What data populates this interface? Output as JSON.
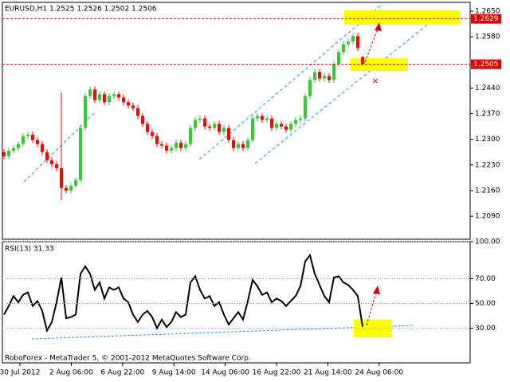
{
  "chart_data": [
    {
      "type": "candlestick",
      "title": "EURUSD,H1  1.2525 1.2526 1.2502 1.2506",
      "up_color": "#32cd32",
      "down_color": "#ff0000",
      "open": [
        1.2265,
        1.2254,
        1.2269,
        1.2276,
        1.2287,
        1.2309,
        1.2313,
        1.2298,
        1.2287,
        1.2265,
        1.2243,
        1.2232,
        1.2221,
        1.2167,
        1.216,
        1.2173,
        1.2189,
        1.2331,
        1.2418,
        1.2436,
        1.2407,
        1.2423,
        1.2401,
        1.2418,
        1.2423,
        1.2414,
        1.2401,
        1.2392,
        1.2385,
        1.2364,
        1.2342,
        1.232,
        1.2309,
        1.2287,
        1.2283,
        1.2269,
        1.2276,
        1.2291,
        1.2276,
        1.2287,
        1.2331,
        1.2353,
        1.2357,
        1.2335,
        1.2331,
        1.2342,
        1.232,
        1.2331,
        1.2298,
        1.2276,
        1.2287,
        1.2276,
        1.2298,
        1.2357,
        1.2364,
        1.2353,
        1.2357,
        1.2331,
        1.2342,
        1.2335,
        1.2326,
        1.2342,
        1.2353,
        1.2357,
        1.2418,
        1.2462,
        1.2484,
        1.2466,
        1.2473,
        1.2462,
        1.2506,
        1.2538,
        1.256,
        1.2567,
        1.2582,
        1.2525
      ],
      "high": [
        1.2273,
        1.2277,
        1.2284,
        1.2295,
        1.2317,
        1.2321,
        1.2321,
        1.2306,
        1.2295,
        1.2273,
        1.2251,
        1.224,
        1.2429,
        1.2175,
        1.2181,
        1.2197,
        1.2339,
        1.2426,
        1.2444,
        1.2444,
        1.2431,
        1.2431,
        1.2426,
        1.2431,
        1.2431,
        1.2422,
        1.2409,
        1.24,
        1.2393,
        1.2372,
        1.235,
        1.2328,
        1.2317,
        1.2295,
        1.2291,
        1.2284,
        1.2299,
        1.2299,
        1.2295,
        1.2339,
        1.2361,
        1.2365,
        1.2365,
        1.2343,
        1.235,
        1.235,
        1.2339,
        1.2339,
        1.2306,
        1.2295,
        1.2295,
        1.2306,
        1.2365,
        1.2372,
        1.2372,
        1.2365,
        1.2365,
        1.235,
        1.235,
        1.2343,
        1.235,
        1.2361,
        1.2365,
        1.2426,
        1.247,
        1.2492,
        1.2492,
        1.2481,
        1.2481,
        1.2514,
        1.2546,
        1.2568,
        1.2575,
        1.259,
        1.259,
        1.2526
      ],
      "low": [
        1.2246,
        1.2246,
        1.2261,
        1.2268,
        1.2279,
        1.2301,
        1.229,
        1.2279,
        1.2257,
        1.2235,
        1.2224,
        1.2213,
        1.2134,
        1.2152,
        1.2152,
        1.2165,
        1.2181,
        1.2323,
        1.241,
        1.2399,
        1.2399,
        1.2393,
        1.2393,
        1.241,
        1.2406,
        1.2393,
        1.2384,
        1.2377,
        1.2356,
        1.2334,
        1.2312,
        1.2301,
        1.2279,
        1.2275,
        1.2261,
        1.2261,
        1.2268,
        1.2268,
        1.2268,
        1.2279,
        1.2323,
        1.2345,
        1.2327,
        1.2323,
        1.2323,
        1.2312,
        1.2312,
        1.229,
        1.2268,
        1.2268,
        1.2268,
        1.2268,
        1.229,
        1.2349,
        1.2345,
        1.2345,
        1.2323,
        1.2323,
        1.2327,
        1.2318,
        1.2318,
        1.2334,
        1.2345,
        1.2349,
        1.241,
        1.2454,
        1.2458,
        1.2458,
        1.2454,
        1.2454,
        1.2498,
        1.253,
        1.2552,
        1.2559,
        1.2541,
        1.2502
      ],
      "close": [
        1.2254,
        1.2269,
        1.2276,
        1.2287,
        1.2309,
        1.2313,
        1.2298,
        1.2287,
        1.2265,
        1.2243,
        1.2232,
        1.2221,
        1.2167,
        1.216,
        1.2173,
        1.2189,
        1.2331,
        1.2418,
        1.2436,
        1.2407,
        1.2423,
        1.2401,
        1.2418,
        1.2423,
        1.2414,
        1.2401,
        1.2392,
        1.2385,
        1.2364,
        1.2342,
        1.232,
        1.2309,
        1.2287,
        1.2283,
        1.2269,
        1.2276,
        1.2291,
        1.2276,
        1.2287,
        1.2331,
        1.2353,
        1.2357,
        1.2335,
        1.2331,
        1.2342,
        1.232,
        1.2331,
        1.2298,
        1.2276,
        1.2287,
        1.2276,
        1.2298,
        1.2357,
        1.2364,
        1.2353,
        1.2357,
        1.2331,
        1.2342,
        1.2335,
        1.2326,
        1.2342,
        1.2353,
        1.2357,
        1.2418,
        1.2462,
        1.2484,
        1.2466,
        1.2473,
        1.2462,
        1.2506,
        1.2538,
        1.256,
        1.2567,
        1.2582,
        1.2549,
        1.2506
      ],
      "ylim": [
        1.2027,
        1.2674
      ],
      "yticks": [
        {
          "value": 1.265,
          "label": "1.2650"
        },
        {
          "value": 1.258,
          "label": "1.2580"
        },
        {
          "value": 1.244,
          "label": "1.2440"
        },
        {
          "value": 1.237,
          "label": "1.2370"
        },
        {
          "value": 1.23,
          "label": "1.2300"
        },
        {
          "value": 1.223,
          "label": "1.2230"
        },
        {
          "value": 1.216,
          "label": "1.2160"
        },
        {
          "value": 1.209,
          "label": "1.2090"
        }
      ],
      "levels": [
        1.2629,
        1.2505
      ],
      "level_color": "#e00000",
      "grid": false
    },
    {
      "type": "line",
      "title": "RSI(13) 31.33",
      "color": "#000000",
      "values": [
        41,
        48,
        56,
        51,
        57,
        59,
        48,
        52,
        44,
        28,
        35,
        51,
        71,
        38,
        39,
        41,
        74,
        80,
        74,
        61,
        67,
        54,
        63,
        61,
        63,
        54,
        51,
        41,
        35,
        41,
        44,
        39,
        30,
        37,
        31,
        35,
        43,
        39,
        41,
        67,
        72,
        61,
        54,
        56,
        48,
        51,
        41,
        33,
        38,
        43,
        37,
        52,
        69,
        64,
        57,
        59,
        51,
        54,
        52,
        48,
        52,
        56,
        64,
        84,
        89,
        74,
        65,
        56,
        51,
        71,
        72,
        67,
        65,
        61,
        56,
        31.33
      ],
      "ylim": [
        2,
        100
      ],
      "yticks": [
        {
          "value": 100,
          "label": "100.00"
        },
        {
          "value": 70,
          "label": "70.00"
        },
        {
          "value": 50,
          "label": "50.00"
        },
        {
          "value": 30,
          "label": "30.00"
        }
      ],
      "grid": true,
      "x_tick_labels": [
        "30 Jul 2012",
        "2 Aug 06:00",
        "6 Aug 22:00",
        "9 Aug 14:00",
        "14 Aug 06:00",
        "16 Aug 22:00",
        "21 Aug 14:00",
        "24 Aug 06:00"
      ],
      "footer": "RoboForex - MetaTrader 5, © 2001-2012 MetaQuotes Software Corp."
    }
  ]
}
